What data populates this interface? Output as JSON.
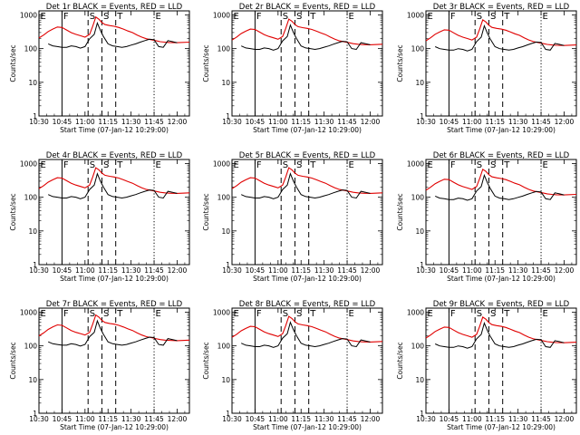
{
  "chart_data": {
    "type": "line",
    "layout": "3x3 grid",
    "ylabel": "Counts/sec",
    "xlabel": "Start Time (07-Jan-12 10:29:00)",
    "x_ticks": [
      "10:30",
      "10:45",
      "11:00",
      "11:15",
      "11:30",
      "11:45",
      "12:00"
    ],
    "x_range_minutes_after_10_00": [
      30,
      128
    ],
    "y_scale": "log",
    "y_ticks": [
      "1",
      "10",
      "100",
      "1000"
    ],
    "ylim": [
      1,
      1000
    ],
    "series_names": [
      "Events",
      "LLD"
    ],
    "series_colors": {
      "Events": "#000000",
      "LLD": "#e00000"
    },
    "markers": [
      {
        "label": "E",
        "time": "10:30",
        "style": "dotted"
      },
      {
        "label": "F",
        "time": "10:45",
        "style": "solid"
      },
      {
        "label": "S",
        "time": "11:02",
        "style": "dashed"
      },
      {
        "label": "S",
        "time": "11:11",
        "style": "dashed"
      },
      {
        "label": "T",
        "time": "11:20",
        "style": "dashed"
      },
      {
        "label": "E",
        "time": "11:45",
        "style": "dotted"
      }
    ],
    "events_series": [
      [
        36,
        120
      ],
      [
        39,
        105
      ],
      [
        42,
        100
      ],
      [
        45,
        95
      ],
      [
        48,
        95
      ],
      [
        51,
        105
      ],
      [
        54,
        100
      ],
      [
        57,
        90
      ],
      [
        60,
        100
      ],
      [
        63,
        170
      ],
      [
        66,
        230
      ],
      [
        68,
        500
      ],
      [
        70,
        300
      ],
      [
        72,
        200
      ],
      [
        75,
        120
      ],
      [
        78,
        105
      ],
      [
        81,
        100
      ],
      [
        84,
        95
      ],
      [
        87,
        100
      ],
      [
        90,
        110
      ],
      [
        93,
        120
      ],
      [
        96,
        135
      ],
      [
        99,
        150
      ],
      [
        102,
        165
      ],
      [
        105,
        160
      ],
      [
        108,
        100
      ],
      [
        111,
        95
      ],
      [
        114,
        150
      ],
      [
        117,
        140
      ],
      [
        120,
        130
      ]
    ],
    "lld_series": [
      [
        30,
        180
      ],
      [
        33,
        220
      ],
      [
        36,
        280
      ],
      [
        39,
        330
      ],
      [
        42,
        380
      ],
      [
        45,
        370
      ],
      [
        48,
        310
      ],
      [
        51,
        260
      ],
      [
        54,
        230
      ],
      [
        57,
        210
      ],
      [
        60,
        190
      ],
      [
        63,
        230
      ],
      [
        65,
        400
      ],
      [
        67,
        750
      ],
      [
        69,
        650
      ],
      [
        71,
        520
      ],
      [
        73,
        450
      ],
      [
        76,
        420
      ],
      [
        79,
        400
      ],
      [
        82,
        370
      ],
      [
        85,
        330
      ],
      [
        88,
        290
      ],
      [
        91,
        260
      ],
      [
        94,
        220
      ],
      [
        97,
        190
      ],
      [
        100,
        170
      ],
      [
        103,
        160
      ],
      [
        106,
        150
      ],
      [
        109,
        140
      ],
      [
        112,
        135
      ],
      [
        115,
        132
      ],
      [
        120,
        130
      ],
      [
        128,
        135
      ]
    ],
    "panels": [
      {
        "title": "Det 1r  BLACK = Events, RED = LLD",
        "scale": 1.15
      },
      {
        "title": "Det 2r  BLACK = Events, RED = LLD",
        "scale": 1.0
      },
      {
        "title": "Det 3r  BLACK = Events, RED = LLD",
        "scale": 0.95
      },
      {
        "title": "Det 4r  BLACK = Events, RED = LLD",
        "scale": 1.0
      },
      {
        "title": "Det 5r  BLACK = Events, RED = LLD",
        "scale": 1.0
      },
      {
        "title": "Det 6r  BLACK = Events, RED = LLD",
        "scale": 0.9
      },
      {
        "title": "Det 7r  BLACK = Events, RED = LLD",
        "scale": 1.1
      },
      {
        "title": "Det 8r  BLACK = Events, RED = LLD",
        "scale": 1.0
      },
      {
        "title": "Det 9r  BLACK = Events, RED = LLD",
        "scale": 0.95
      }
    ]
  }
}
